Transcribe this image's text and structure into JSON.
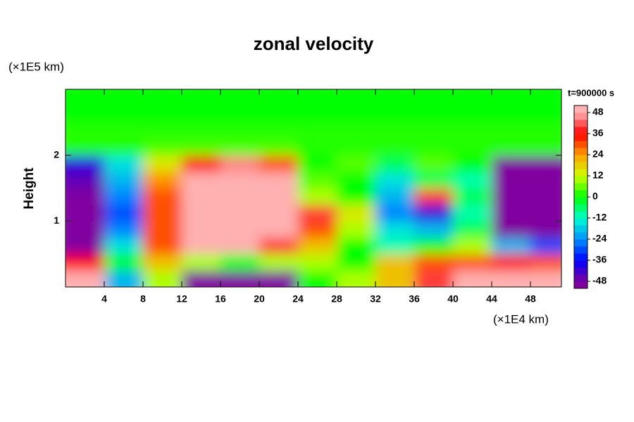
{
  "chart_data": {
    "type": "heatmap",
    "title": "zonal velocity",
    "x_unit_label": "(×1E4 km)",
    "y_unit_label": "(×1E5 km)",
    "ylabel": "Height",
    "colorbar_title": "t=900000 s",
    "xbins": [
      0,
      4,
      8,
      12,
      16,
      20,
      24,
      28,
      32,
      36,
      40,
      44,
      48,
      51.2
    ],
    "ybins": [
      0,
      0.25,
      0.5,
      0.75,
      1,
      1.25,
      1.5,
      1.75,
      2,
      2.25,
      2.5,
      2.75,
      3
    ],
    "z": [
      [
        48,
        -20,
        10,
        -48,
        -48,
        -48,
        0,
        10,
        20,
        40,
        48,
        48,
        48
      ],
      [
        36,
        0,
        20,
        10,
        0,
        10,
        10,
        0,
        20,
        30,
        30,
        36,
        30
      ],
      [
        -48,
        -15,
        30,
        48,
        48,
        40,
        20,
        0,
        -10,
        0,
        10,
        -20,
        -30
      ],
      [
        -48,
        -25,
        30,
        48,
        48,
        48,
        30,
        10,
        -15,
        -20,
        -5,
        -48,
        -48
      ],
      [
        -48,
        -30,
        30,
        48,
        48,
        48,
        40,
        15,
        -25,
        -40,
        -10,
        -48,
        -48
      ],
      [
        -48,
        -25,
        30,
        48,
        48,
        48,
        10,
        0,
        -20,
        40,
        -5,
        -48,
        -48
      ],
      [
        -45,
        -20,
        25,
        48,
        48,
        48,
        5,
        0,
        -15,
        -5,
        -10,
        -48,
        -48
      ],
      [
        -40,
        -15,
        15,
        36,
        45,
        30,
        0,
        5,
        -5,
        5,
        0,
        -48,
        -48
      ],
      [
        2,
        2,
        4,
        4,
        4,
        4,
        2,
        2,
        2,
        2,
        2,
        2,
        2
      ],
      [
        2,
        2,
        2,
        2,
        2,
        2,
        2,
        2,
        2,
        2,
        2,
        2,
        2
      ],
      [
        0,
        0,
        0,
        0,
        0,
        0,
        0,
        0,
        0,
        0,
        0,
        0,
        0
      ],
      [
        0,
        0,
        0,
        0,
        0,
        0,
        0,
        0,
        0,
        0,
        0,
        0,
        0
      ]
    ],
    "xlim": [
      0,
      51.2
    ],
    "ylim": [
      0,
      3
    ],
    "xticks": [
      4,
      8,
      12,
      16,
      20,
      24,
      28,
      32,
      36,
      40,
      44,
      48
    ],
    "yticks": [
      1,
      2
    ],
    "clim": [
      -52,
      52
    ],
    "cticks": [
      -48,
      -36,
      -24,
      -12,
      0,
      12,
      24,
      36,
      48
    ],
    "colormap": [
      [
        -48,
        "#8000a0"
      ],
      [
        -36,
        "#0000ff"
      ],
      [
        -24,
        "#0090ff"
      ],
      [
        -12,
        "#00ffd0"
      ],
      [
        0,
        "#00ff00"
      ],
      [
        12,
        "#d0ff00"
      ],
      [
        24,
        "#ffa000"
      ],
      [
        36,
        "#ff0000"
      ],
      [
        48,
        "#ffb0b0"
      ]
    ]
  }
}
